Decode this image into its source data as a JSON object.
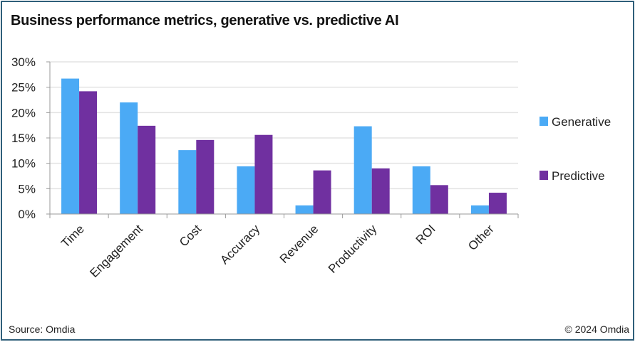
{
  "title": "Business performance metrics, generative vs. predictive AI",
  "footer": {
    "source": "Source: Omdia",
    "copyright": "© 2024 Omdia"
  },
  "colors": {
    "generative": "#4baaf5",
    "predictive": "#7030a0",
    "frame": "#2f5f7a",
    "grid": "#e3e3e3",
    "axis": "#9a9a9a"
  },
  "chart_data": {
    "type": "bar",
    "title": "Business performance metrics, generative vs. predictive AI",
    "xlabel": "",
    "ylabel": "",
    "categories": [
      "Time",
      "Engagement",
      "Cost",
      "Accuracy",
      "Revenue",
      "Productivity",
      "ROI",
      "Other"
    ],
    "series": [
      {
        "name": "Generative",
        "values": [
          26.7,
          22.0,
          12.6,
          9.4,
          1.7,
          17.3,
          9.4,
          1.7
        ]
      },
      {
        "name": "Predictive",
        "values": [
          24.2,
          17.4,
          14.6,
          15.6,
          8.6,
          9.0,
          5.7,
          4.2
        ]
      }
    ],
    "ylim": [
      0,
      30
    ],
    "yticks": [
      0,
      5,
      10,
      15,
      20,
      25,
      30
    ],
    "ytick_labels": [
      "0%",
      "5%",
      "10%",
      "15%",
      "20%",
      "25%",
      "30%"
    ],
    "grid": true,
    "legend_position": "right"
  }
}
